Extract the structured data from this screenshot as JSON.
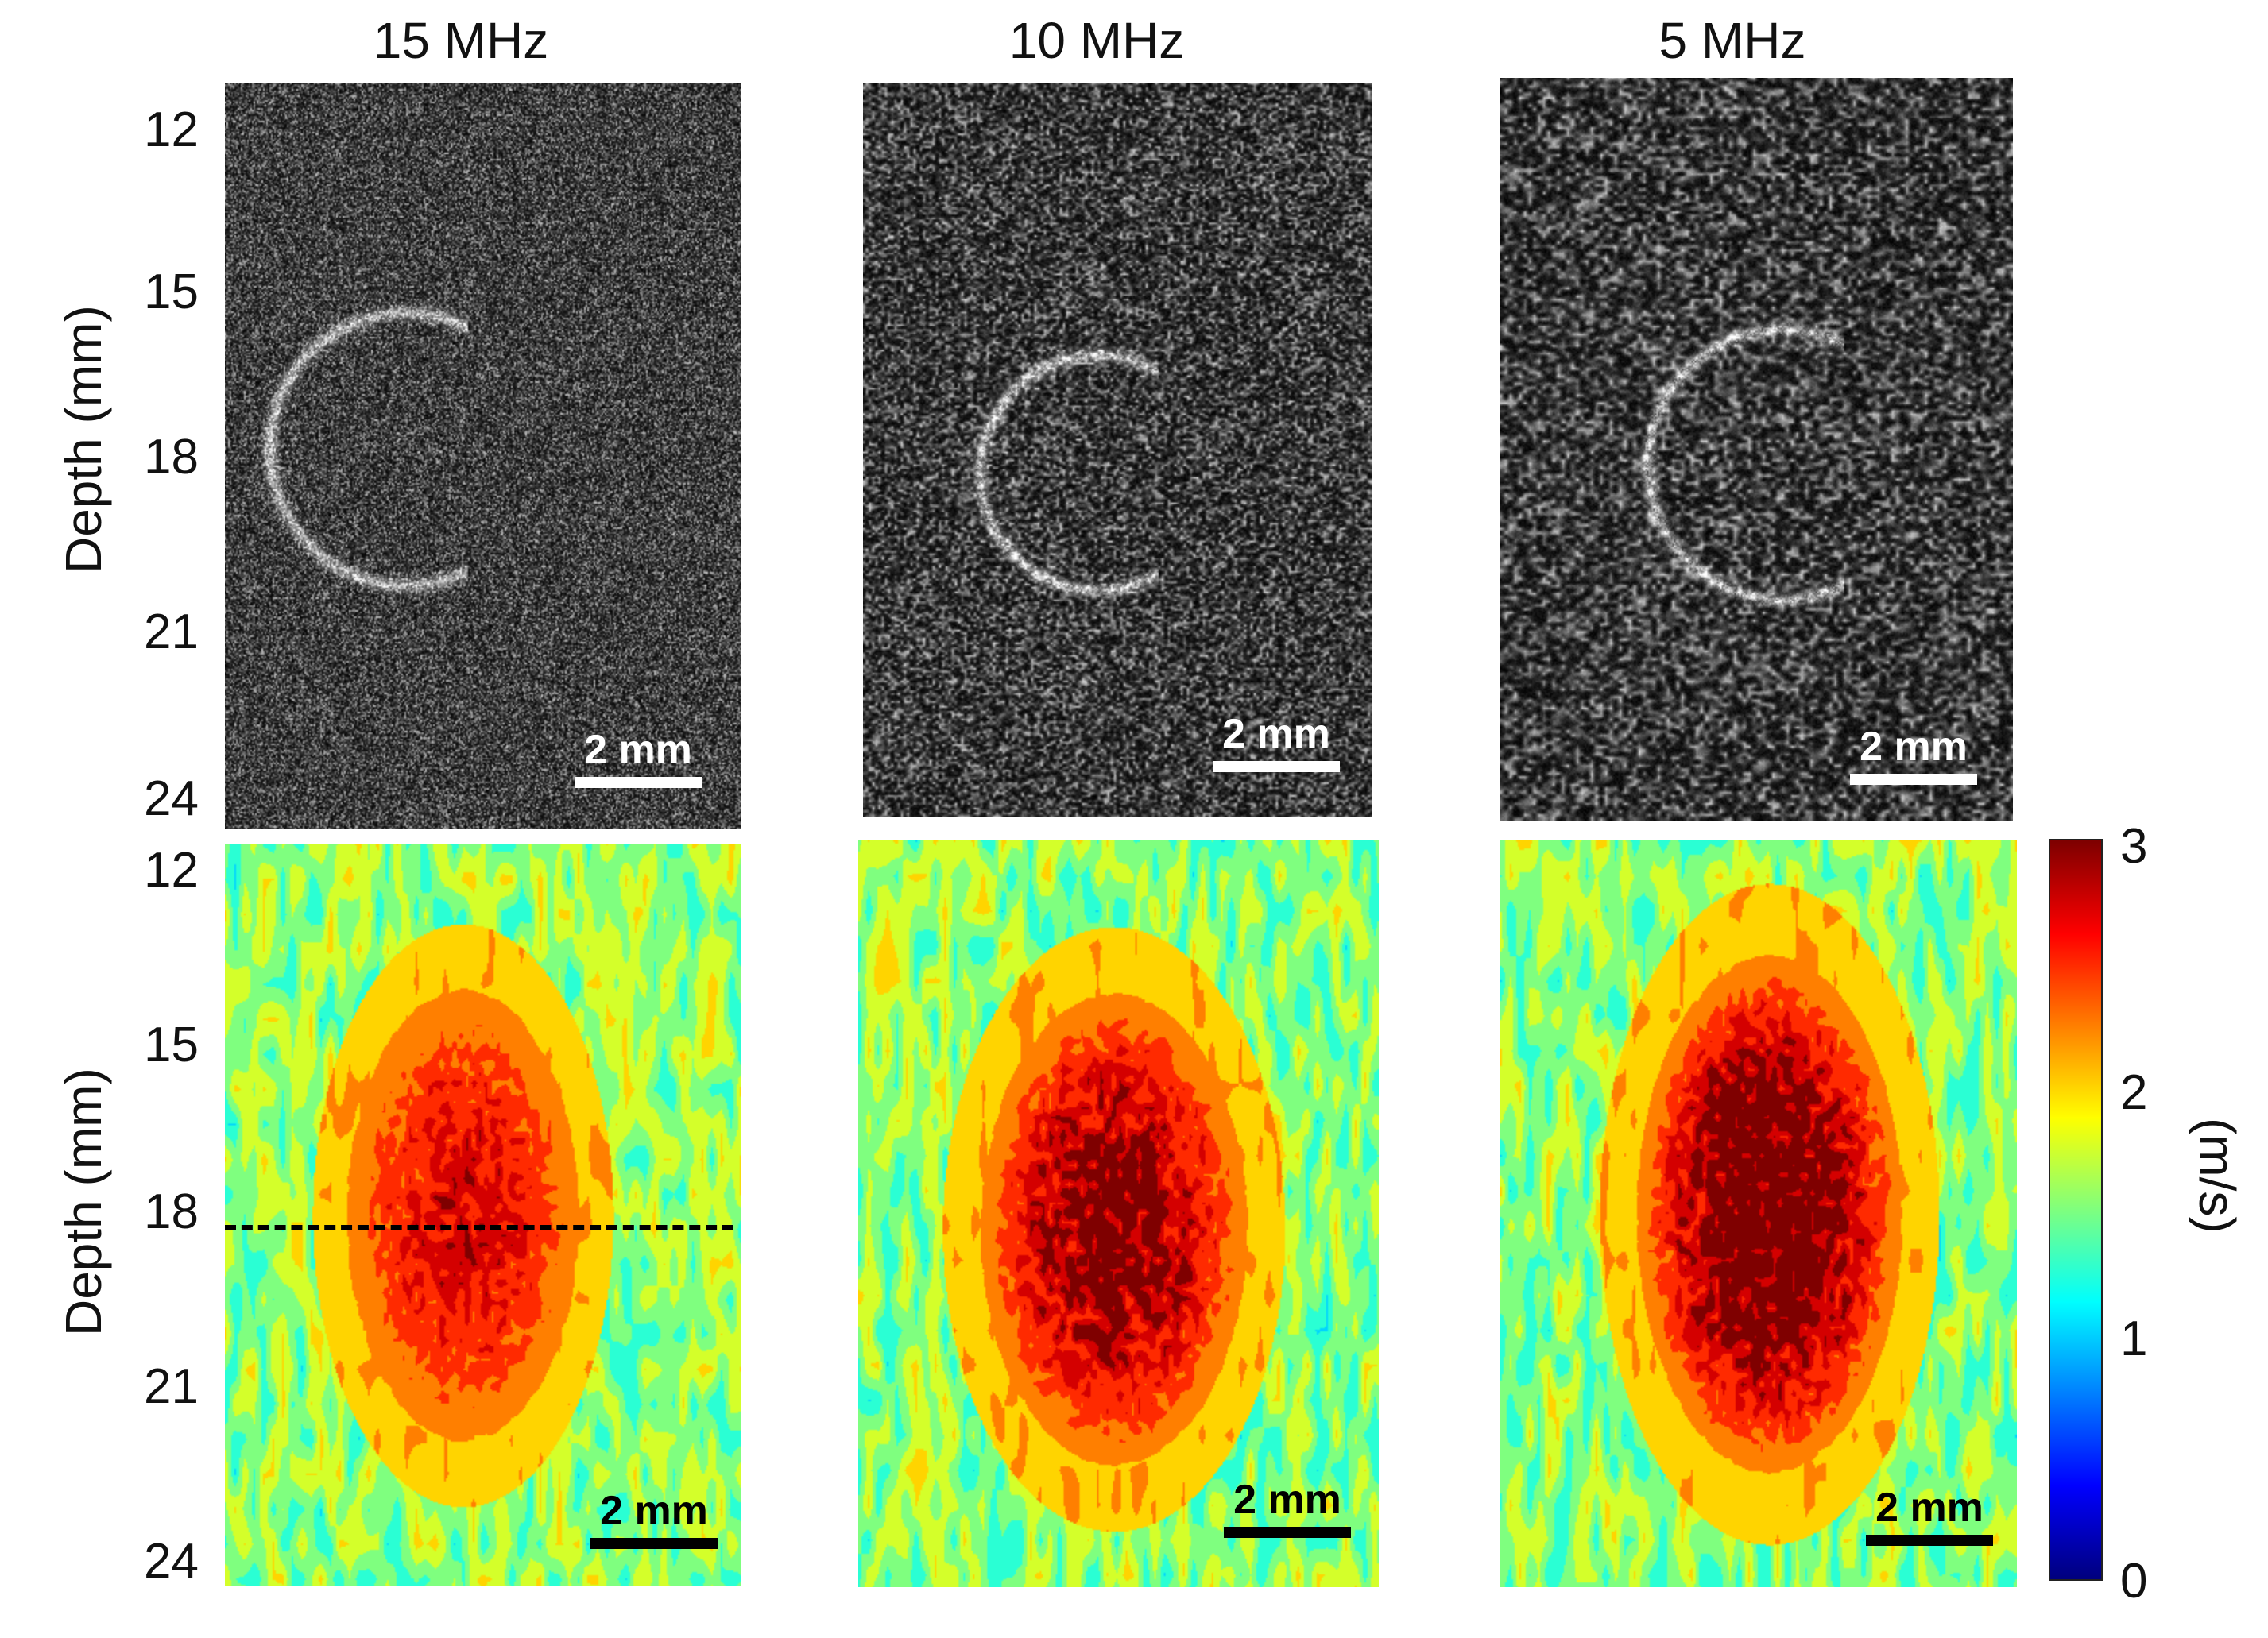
{
  "columns": [
    {
      "frequency": "15 MHz"
    },
    {
      "frequency": "10 MHz"
    },
    {
      "frequency": "5 MHz"
    }
  ],
  "rows": [
    {
      "ylabel": "Depth (mm)",
      "ticks": [
        "12",
        "15",
        "18",
        "21",
        "24"
      ]
    },
    {
      "ylabel": "Depth (mm)",
      "ticks": [
        "12",
        "15",
        "18",
        "21",
        "24"
      ]
    }
  ],
  "scale_bar_label": "2 mm",
  "colorbar": {
    "unit": "(m/s)",
    "ticks": [
      "3",
      "2",
      "1",
      "0"
    ],
    "min": 0,
    "max": 3,
    "colormap": "jet"
  },
  "colors": {
    "background": "#ffffff",
    "dashed_line": "#000000"
  }
}
